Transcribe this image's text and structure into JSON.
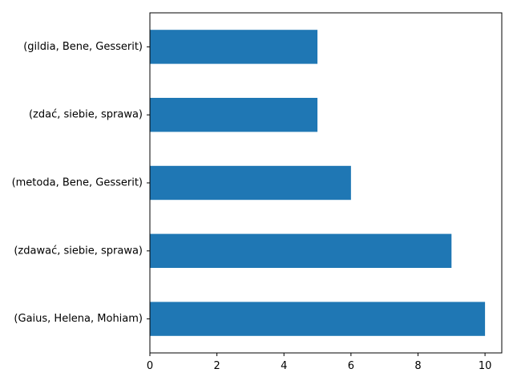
{
  "chart_data": {
    "type": "bar",
    "orientation": "horizontal",
    "categories": [
      "(gildia, Bene, Gesserit)",
      "(zdać, siebie, sprawa)",
      "(metoda, Bene, Gesserit)",
      "(zdawać, siebie, sprawa)",
      "(Gaius, Helena, Mohiam)"
    ],
    "values": [
      5,
      5,
      6,
      9,
      10
    ],
    "xticks": [
      0,
      2,
      4,
      6,
      8,
      10
    ],
    "xlim": [
      0,
      10.5
    ],
    "title": "",
    "xlabel": "",
    "ylabel": "",
    "grid": false,
    "bar_color": "#1f77b4"
  }
}
